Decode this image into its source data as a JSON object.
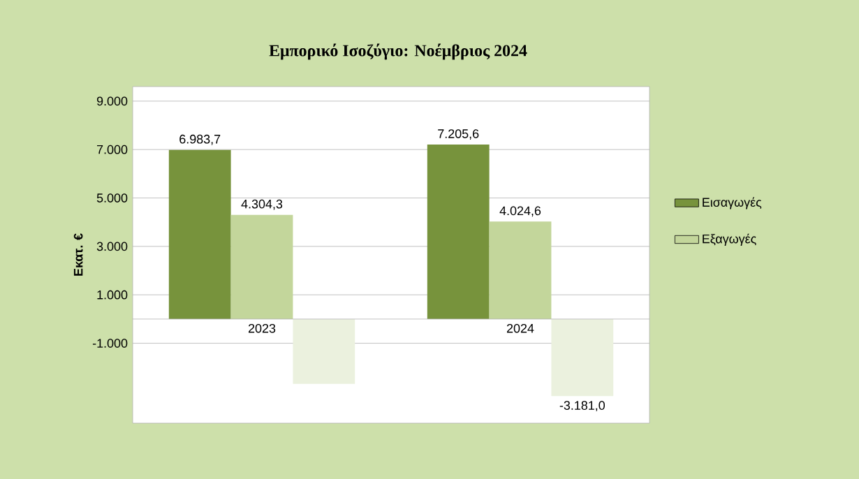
{
  "chart_data": {
    "type": "bar",
    "title": "Εμπορικό Ισοζύγιο: Νοέμβριος 2024",
    "ylabel": "Εκατ. €",
    "categories": [
      "2023",
      "2024"
    ],
    "series": [
      {
        "name": "Εισαγωγές",
        "color": "#77933c",
        "values": [
          6983.7,
          7205.6
        ],
        "value_labels": [
          "6.983,7",
          "7.205,6"
        ]
      },
      {
        "name": "Εξαγωγές",
        "color": "#c3d69b",
        "values": [
          4304.3,
          4024.6
        ],
        "value_labels": [
          "4.304,3",
          "4.024,6"
        ]
      },
      {
        "color": "#ebf1de",
        "values": [
          -2680,
          -3181.0
        ],
        "value_labels": [
          null,
          "-3.181,0"
        ]
      }
    ],
    "ylim": [
      -4300,
      9600
    ],
    "yticks": [
      {
        "value": -1000,
        "label": "-1.000"
      },
      {
        "value": 1000,
        "label": "1.000"
      },
      {
        "value": 3000,
        "label": "3.000"
      },
      {
        "value": 5000,
        "label": "5.000"
      },
      {
        "value": 7000,
        "label": "7.000"
      },
      {
        "value": 9000,
        "label": "9.000"
      }
    ],
    "grid": "y",
    "legend": "right"
  }
}
